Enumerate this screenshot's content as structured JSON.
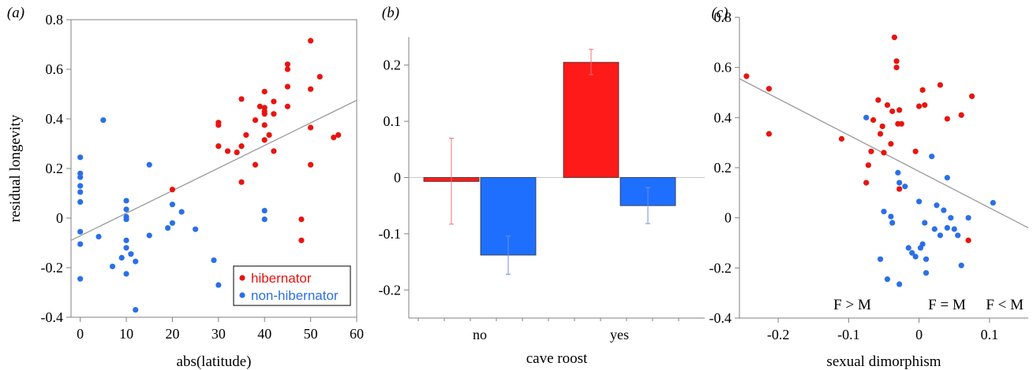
{
  "colors": {
    "hibernator": "#e8140f",
    "non_hibernator": "#2a6fe8",
    "bar_red": "#ff1a1a",
    "bar_blue": "#1f6fff",
    "fit_line": "#9a9a9a",
    "axis": "#808080"
  },
  "chart_data": [
    {
      "panel": "(a)",
      "type": "scatter",
      "xlabel": "abs(latitude)",
      "ylabel": "residual longevity",
      "xlim": [
        -2,
        60
      ],
      "ylim": [
        -0.4,
        0.8
      ],
      "xticks": [
        "0",
        "10",
        "20",
        "30",
        "40",
        "50",
        "60"
      ],
      "yticks": [
        "0.8",
        "0.6",
        "0.4",
        "0.2",
        "0",
        "-0.2",
        "-0.4"
      ],
      "fit_line": [
        [
          -2,
          -0.09
        ],
        [
          60,
          0.475
        ]
      ],
      "legend": {
        "position": "bottom-right",
        "entries": [
          "hibernator",
          "non-hibernator"
        ]
      },
      "series": [
        {
          "name": "hibernator",
          "points": [
            [
              20,
              0.115
            ],
            [
              30,
              0.375
            ],
            [
              30,
              0.385
            ],
            [
              30,
              0.29
            ],
            [
              32,
              0.27
            ],
            [
              34,
              0.265
            ],
            [
              35,
              0.29
            ],
            [
              35,
              0.48
            ],
            [
              35,
              0.145
            ],
            [
              36,
              0.335
            ],
            [
              38,
              0.395
            ],
            [
              38,
              0.215
            ],
            [
              39,
              0.45
            ],
            [
              40,
              0.51
            ],
            [
              40,
              0.445
            ],
            [
              40,
              0.43
            ],
            [
              40,
              0.42
            ],
            [
              40,
              0.375
            ],
            [
              40,
              0.315
            ],
            [
              41,
              0.335
            ],
            [
              42,
              0.47
            ],
            [
              42,
              0.42
            ],
            [
              42,
              0.27
            ],
            [
              45,
              0.62
            ],
            [
              45,
              0.6
            ],
            [
              45,
              0.53
            ],
            [
              45,
              0.45
            ],
            [
              48,
              -0.005
            ],
            [
              48,
              -0.09
            ],
            [
              50,
              0.715
            ],
            [
              50,
              0.52
            ],
            [
              50,
              0.365
            ],
            [
              50,
              0.215
            ],
            [
              52,
              0.57
            ],
            [
              55,
              0.325
            ],
            [
              56,
              0.335
            ]
          ]
        },
        {
          "name": "non-hibernator",
          "points": [
            [
              0,
              0.245
            ],
            [
              0,
              0.18
            ],
            [
              0,
              0.165
            ],
            [
              0,
              0.13
            ],
            [
              0,
              0.105
            ],
            [
              0,
              0.065
            ],
            [
              0,
              -0.055
            ],
            [
              0,
              -0.105
            ],
            [
              0,
              -0.245
            ],
            [
              4,
              -0.075
            ],
            [
              5,
              0.395
            ],
            [
              7,
              -0.195
            ],
            [
              9,
              -0.16
            ],
            [
              10,
              0.07
            ],
            [
              10,
              0.035
            ],
            [
              10,
              0.005
            ],
            [
              10,
              -0.005
            ],
            [
              10,
              -0.09
            ],
            [
              10,
              -0.12
            ],
            [
              10,
              -0.225
            ],
            [
              11,
              -0.145
            ],
            [
              12,
              -0.175
            ],
            [
              12,
              -0.37
            ],
            [
              15,
              0.215
            ],
            [
              15,
              -0.07
            ],
            [
              19,
              -0.04
            ],
            [
              20,
              0.055
            ],
            [
              20,
              -0.02
            ],
            [
              22,
              0.025
            ],
            [
              25,
              -0.045
            ],
            [
              29,
              -0.17
            ],
            [
              30,
              -0.27
            ],
            [
              40,
              0.03
            ],
            [
              40,
              -0.005
            ]
          ]
        }
      ]
    },
    {
      "panel": "(b)",
      "type": "bar",
      "xlabel": "cave roost",
      "ylabel": "",
      "categories": [
        "no",
        "yes"
      ],
      "ylim": [
        -0.25,
        0.25
      ],
      "yticks": [
        "0.2",
        "0.1",
        "0",
        "-0.1",
        "-0.2"
      ],
      "series": [
        {
          "name": "hibernator",
          "values": [
            -0.007,
            0.205
          ],
          "errors": [
            [
              -0.083,
              0.07
            ],
            [
              0.183,
              0.228
            ]
          ]
        },
        {
          "name": "non-hibernator",
          "values": [
            -0.138,
            -0.05
          ],
          "errors": [
            [
              -0.172,
              -0.104
            ],
            [
              -0.082,
              -0.018
            ]
          ]
        }
      ]
    },
    {
      "panel": "(c)",
      "type": "scatter",
      "xlabel": "sexual dimorphism",
      "ylabel": "",
      "xlim": [
        -0.255,
        0.155
      ],
      "ylim": [
        -0.4,
        0.8
      ],
      "xticks": [
        "-0.2",
        "-0.1",
        "0",
        "0.1"
      ],
      "yticks": [
        "0.8",
        "0.6",
        "0.4",
        "0.2",
        "0",
        "-0.2",
        "-0.4"
      ],
      "fit_line": [
        [
          -0.255,
          0.555
        ],
        [
          0.155,
          -0.04
        ]
      ],
      "annotations": [
        "F > M",
        "F = M",
        "F < M"
      ],
      "series": [
        {
          "name": "hibernator",
          "points": [
            [
              -0.245,
              0.565
            ],
            [
              -0.213,
              0.515
            ],
            [
              -0.213,
              0.335
            ],
            [
              -0.11,
              0.315
            ],
            [
              -0.075,
              0.14
            ],
            [
              -0.072,
              0.21
            ],
            [
              -0.068,
              0.265
            ],
            [
              -0.065,
              0.39
            ],
            [
              -0.058,
              0.47
            ],
            [
              -0.055,
              0.335
            ],
            [
              -0.052,
              0.365
            ],
            [
              -0.05,
              0.26
            ],
            [
              -0.045,
              0.45
            ],
            [
              -0.04,
              0.295
            ],
            [
              -0.038,
              0.425
            ],
            [
              -0.035,
              0.72
            ],
            [
              -0.032,
              0.625
            ],
            [
              -0.032,
              0.6
            ],
            [
              -0.03,
              0.375
            ],
            [
              -0.028,
              0.115
            ],
            [
              -0.028,
              0.43
            ],
            [
              -0.025,
              0.375
            ],
            [
              -0.005,
              0.265
            ],
            [
              0.0,
              0.445
            ],
            [
              0.005,
              0.51
            ],
            [
              0.008,
              0.45
            ],
            [
              0.03,
              0.53
            ],
            [
              0.04,
              0.395
            ],
            [
              0.06,
              0.41
            ],
            [
              0.07,
              -0.09
            ],
            [
              0.075,
              0.485
            ]
          ]
        },
        {
          "name": "non-hibernator",
          "points": [
            [
              -0.075,
              0.4
            ],
            [
              -0.055,
              -0.165
            ],
            [
              -0.05,
              0.025
            ],
            [
              -0.045,
              -0.245
            ],
            [
              -0.04,
              0.005
            ],
            [
              -0.038,
              -0.02
            ],
            [
              -0.03,
              0.18
            ],
            [
              -0.028,
              0.14
            ],
            [
              -0.028,
              -0.265
            ],
            [
              -0.02,
              0.125
            ],
            [
              -0.015,
              -0.12
            ],
            [
              -0.01,
              -0.14
            ],
            [
              -0.005,
              -0.155
            ],
            [
              0.0,
              0.065
            ],
            [
              0.002,
              -0.12
            ],
            [
              0.005,
              -0.105
            ],
            [
              0.008,
              -0.02
            ],
            [
              0.01,
              -0.165
            ],
            [
              0.01,
              -0.22
            ],
            [
              0.018,
              0.245
            ],
            [
              0.022,
              -0.045
            ],
            [
              0.025,
              0.05
            ],
            [
              0.03,
              -0.07
            ],
            [
              0.035,
              0.03
            ],
            [
              0.04,
              0.16
            ],
            [
              0.04,
              -0.04
            ],
            [
              0.045,
              0.0
            ],
            [
              0.05,
              -0.045
            ],
            [
              0.055,
              -0.07
            ],
            [
              0.06,
              -0.19
            ],
            [
              0.07,
              0.0
            ],
            [
              0.105,
              0.06
            ]
          ]
        }
      ]
    }
  ]
}
